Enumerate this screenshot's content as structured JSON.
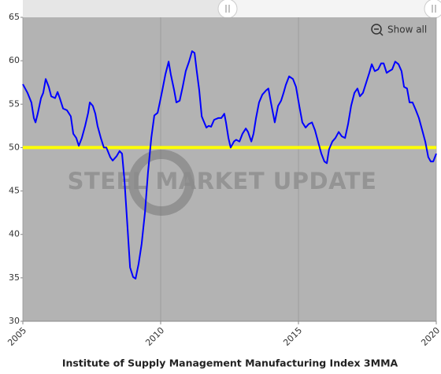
{
  "chart_data": {
    "type": "line",
    "title": "Institute of Supply Management Manufacturing Index 3MMA",
    "watermark": "STEEL MARKET UPDATE",
    "reset_zoom_label": "Show all",
    "color": "#0000ff",
    "background": "#b3b3b3",
    "grid": true,
    "reference_line": {
      "value": 50,
      "color": "#ffff00"
    },
    "xlim": [
      2005,
      2020
    ],
    "xticks": [
      2005,
      2010,
      2015,
      2020
    ],
    "ylim": [
      30,
      65
    ],
    "yticks": [
      30,
      35,
      40,
      45,
      50,
      55,
      60,
      65
    ],
    "x": [
      2005.0,
      2005.17,
      2005.31,
      2005.4,
      2005.46,
      2005.54,
      2005.66,
      2005.74,
      2005.83,
      2005.94,
      2006.03,
      2006.17,
      2006.26,
      2006.34,
      2006.46,
      2006.6,
      2006.74,
      2006.83,
      2006.94,
      2007.03,
      2007.14,
      2007.26,
      2007.37,
      2007.43,
      2007.54,
      2007.63,
      2007.71,
      2007.83,
      2007.94,
      2008.03,
      2008.17,
      2008.26,
      2008.4,
      2008.51,
      2008.6,
      2008.69,
      2008.8,
      2008.89,
      2009.0,
      2009.09,
      2009.2,
      2009.31,
      2009.43,
      2009.54,
      2009.66,
      2009.77,
      2009.89,
      2009.97,
      2010.06,
      2010.17,
      2010.29,
      2010.37,
      2010.49,
      2010.57,
      2010.69,
      2010.8,
      2010.91,
      2011.03,
      2011.14,
      2011.23,
      2011.31,
      2011.4,
      2011.49,
      2011.54,
      2011.66,
      2011.74,
      2011.83,
      2011.94,
      2012.09,
      2012.2,
      2012.31,
      2012.37,
      2012.46,
      2012.54,
      2012.66,
      2012.74,
      2012.86,
      2012.97,
      2013.09,
      2013.17,
      2013.29,
      2013.37,
      2013.46,
      2013.57,
      2013.69,
      2013.83,
      2013.91,
      2014.0,
      2014.14,
      2014.26,
      2014.37,
      2014.46,
      2014.54,
      2014.66,
      2014.8,
      2014.91,
      2015.03,
      2015.14,
      2015.26,
      2015.37,
      2015.49,
      2015.6,
      2015.71,
      2015.83,
      2015.94,
      2016.03,
      2016.11,
      2016.23,
      2016.34,
      2016.46,
      2016.57,
      2016.69,
      2016.8,
      2016.91,
      2017.03,
      2017.14,
      2017.23,
      2017.34,
      2017.46,
      2017.57,
      2017.66,
      2017.77,
      2017.89,
      2018.0,
      2018.09,
      2018.2,
      2018.29,
      2018.4,
      2018.51,
      2018.63,
      2018.74,
      2018.83,
      2018.94,
      2019.03,
      2019.14,
      2019.26,
      2019.37,
      2019.49,
      2019.6,
      2019.71,
      2019.8,
      2019.89,
      2020.0
    ],
    "values": [
      57.3,
      56.3,
      55.2,
      53.4,
      52.9,
      53.9,
      55.7,
      56.3,
      57.9,
      57.0,
      55.9,
      55.7,
      56.4,
      55.7,
      54.5,
      54.3,
      53.6,
      51.6,
      51.1,
      50.2,
      51.1,
      52.5,
      54.0,
      55.2,
      54.8,
      53.9,
      52.5,
      51.1,
      50.0,
      50.0,
      48.9,
      48.5,
      49.0,
      49.6,
      49.3,
      46.1,
      40.7,
      36.2,
      35.1,
      34.9,
      36.6,
      38.9,
      42.5,
      47.1,
      51.1,
      53.7,
      54.0,
      55.2,
      56.6,
      58.4,
      59.9,
      58.4,
      56.6,
      55.2,
      55.4,
      57.0,
      58.8,
      59.9,
      61.1,
      60.9,
      58.8,
      56.6,
      53.6,
      53.2,
      52.3,
      52.5,
      52.4,
      53.2,
      53.4,
      53.4,
      53.9,
      52.9,
      51.1,
      50.0,
      50.7,
      50.9,
      50.7,
      51.6,
      52.2,
      51.8,
      50.7,
      51.6,
      53.4,
      55.2,
      56.1,
      56.6,
      56.8,
      55.2,
      52.9,
      54.8,
      55.4,
      56.3,
      57.2,
      58.2,
      57.9,
      57.0,
      54.8,
      52.9,
      52.3,
      52.7,
      52.9,
      52.0,
      50.7,
      49.3,
      48.4,
      48.2,
      49.8,
      50.7,
      51.1,
      51.8,
      51.3,
      51.1,
      52.7,
      54.8,
      56.3,
      56.8,
      55.9,
      56.3,
      57.5,
      58.6,
      59.6,
      58.8,
      59.0,
      59.7,
      59.7,
      58.6,
      58.8,
      59.0,
      59.9,
      59.6,
      58.8,
      57.0,
      56.8,
      55.2,
      55.2,
      54.3,
      53.4,
      52.0,
      50.7,
      48.9,
      48.4,
      48.4,
      49.3
    ]
  }
}
